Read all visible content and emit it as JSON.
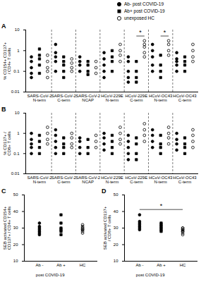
{
  "chart_data": [
    {
      "type": "scatter",
      "title": "A",
      "legend": "top-right",
      "log": "y",
      "y_label": "% CD154+ CD137+ / CD4+ T cells",
      "categories": [
        "SARS-CoV-2 N-term",
        "SARS-CoV-2 C-term",
        "SARS-CoV-2 NCAP",
        "HCoV-229E N-term",
        "HCoV-229E C-term",
        "HCoV-OC43 N-term",
        "HCoV-OC43 C-term"
      ],
      "ylim": [
        0.01,
        10
      ],
      "yticks": [
        0.01,
        0.1,
        1,
        10
      ],
      "series": [
        {
          "name": "Ab- post COVID-19",
          "color": "#000000",
          "marker": "circle",
          "values": [
            [
              0.5,
              0.3,
              0.15,
              0.08,
              0.05
            ],
            [
              2,
              0.8,
              0.5,
              0.3,
              0.1
            ],
            [
              0.5,
              0.3,
              0.2,
              0.1
            ],
            [
              0.8,
              0.4,
              0.2,
              0.1,
              0.05
            ],
            [
              0.5,
              0.3,
              0.1,
              0.05,
              0.03
            ],
            [
              2,
              1,
              0.5,
              0.2,
              0.1
            ],
            [
              0.8,
              0.4,
              0.3,
              0.2,
              0.1
            ]
          ]
        },
        {
          "name": "Ab+ post COVID-19",
          "color": "#000000",
          "marker": "square",
          "values": [
            [
              1.2,
              0.6,
              0.4,
              0.2,
              0.08
            ],
            [
              0.5,
              0.3,
              0.2,
              0.1,
              0.05
            ],
            [
              0.3,
              0.2,
              0.1,
              0.07
            ],
            [
              1,
              0.5,
              0.3,
              0.1
            ],
            [
              0.3,
              0.1,
              0.05,
              0.03
            ],
            [
              0.6,
              0.2,
              0.1,
              0.05
            ],
            [
              0.5,
              0.3,
              0.2,
              0.1
            ]
          ]
        },
        {
          "name": "unexposed HC",
          "color": "#000000",
          "marker": "open_circle",
          "values": [
            [
              0.6,
              0.3,
              0.15,
              0.1,
              0.05
            ],
            [
              0.4,
              0.25,
              0.15,
              0.1
            ],
            [
              0.3,
              0.15,
              0.08
            ],
            [
              2,
              1,
              0.6,
              0.3
            ],
            [
              3,
              2,
              1.5,
              0.8,
              0.5
            ],
            [
              3,
              2,
              1,
              0.6
            ],
            [
              2,
              1,
              0.5,
              0.3
            ]
          ]
        }
      ],
      "significance": [
        {
          "category": "HCoV-229E C-term",
          "groups": [
            "Ab+ post COVID-19",
            "unexposed HC"
          ],
          "label": "*"
        },
        {
          "category": "HCoV-OC43 N-term",
          "groups": [
            "Ab+ post COVID-19",
            "unexposed HC"
          ],
          "label": "*"
        }
      ]
    },
    {
      "type": "scatter",
      "title": "B",
      "log": "y",
      "y_label": "% CD137+ / CD8+ T cells",
      "categories": [
        "SARS-CoV-2 N-term",
        "SARS-CoV-2 C-term",
        "SARS-CoV-2 NCAP",
        "HCoV-229E N-term",
        "HCoV-229E C-term",
        "HCoV-OC43 N-term",
        "HCoV-OC43 C-term"
      ],
      "ylim": [
        0.01,
        10
      ],
      "yticks": [
        0.01,
        0.1,
        1,
        10
      ],
      "series": [
        {
          "name": "Ab- post COVID-19",
          "color": "#000000",
          "marker": "circle",
          "values": [
            [
              1,
              0.5,
              0.3,
              0.2,
              0.1
            ],
            [
              1.5,
              0.8,
              0.4,
              0.2,
              0.1
            ],
            [
              0.6,
              0.4,
              0.2,
              0.1
            ],
            [
              1,
              0.6,
              0.3,
              0.15
            ],
            [
              0.8,
              0.4,
              0.2,
              0.1,
              0.05
            ],
            [
              1.5,
              0.8,
              0.4,
              0.2
            ],
            [
              1,
              0.5,
              0.3,
              0.15
            ]
          ]
        },
        {
          "name": "Ab+ post COVID-19",
          "color": "#000000",
          "marker": "square",
          "values": [
            [
              0.8,
              0.4,
              0.2,
              0.1
            ],
            [
              0.6,
              0.3,
              0.2,
              0.1
            ],
            [
              0.5,
              0.2,
              0.1
            ],
            [
              0.8,
              0.4,
              0.2,
              0.1
            ],
            [
              0.6,
              0.3,
              0.1,
              0.05
            ],
            [
              0.8,
              0.3,
              0.2,
              0.1
            ],
            [
              0.6,
              0.3,
              0.2,
              0.1
            ]
          ]
        },
        {
          "name": "unexposed HC",
          "color": "#000000",
          "marker": "open_circle",
          "values": [
            [
              2,
              1,
              0.5,
              0.3
            ],
            [
              1,
              0.6,
              0.3,
              0.2
            ],
            [
              0.8,
              0.4,
              0.2
            ],
            [
              2,
              1,
              0.5,
              0.3
            ],
            [
              3,
              1.5,
              0.8,
              0.4
            ],
            [
              2,
              1,
              0.6,
              0.3
            ],
            [
              1.5,
              0.8,
              0.4,
              0.2
            ]
          ]
        }
      ]
    },
    {
      "type": "scatter",
      "title": "C",
      "y_label": "SEB activated CD154+ CD137+ / CD4+ T cells",
      "categories": [
        "Ab -",
        "Ab +",
        "HC"
      ],
      "ylim": [
        10,
        50
      ],
      "yticks": [
        10,
        20,
        30,
        40,
        50
      ],
      "series": [
        {
          "name": "Ab- post COVID-19",
          "color": "#000000",
          "marker": "circle",
          "values": [
            [
              33,
              30,
              28,
              27,
              26,
              31,
              29
            ],
            null,
            null
          ]
        },
        {
          "name": "Ab+ post COVID-19",
          "color": "#000000",
          "marker": "square",
          "values": [
            null,
            [
              38,
              33,
              30,
              28,
              26,
              29
            ],
            null
          ]
        },
        {
          "name": "unexposed HC",
          "color": "#000000",
          "marker": "open_circle",
          "values": [
            null,
            null,
            [
              31,
              30,
              29,
              28,
              27,
              30,
              32,
              29
            ]
          ]
        }
      ],
      "annotations": [
        {
          "text": "post COVID-19",
          "categories": [
            "Ab -",
            "Ab +"
          ]
        }
      ]
    },
    {
      "type": "scatter",
      "title": "D",
      "y_label": "SEB activated CD137+ / CD8+ T cells",
      "categories": [
        "Ab -",
        "Ab +",
        "HC"
      ],
      "ylim": [
        10,
        50
      ],
      "yticks": [
        10,
        20,
        30,
        40,
        50
      ],
      "series": [
        {
          "name": "Ab- post COVID-19",
          "color": "#000000",
          "marker": "circle",
          "values": [
            [
              38,
              34,
              32,
              30,
              29,
              33,
              31
            ],
            null,
            null
          ]
        },
        {
          "name": "Ab+ post COVID-19",
          "color": "#000000",
          "marker": "square",
          "values": [
            null,
            [
              33,
              31,
              30,
              28,
              29,
              32
            ],
            null
          ]
        },
        {
          "name": "unexposed HC",
          "color": "#000000",
          "marker": "open_circle",
          "values": [
            null,
            null,
            [
              30,
              29,
              28,
              27,
              29,
              26,
              28,
              30
            ]
          ]
        }
      ],
      "annotations": [
        {
          "text": "post COVID-19",
          "categories": [
            "Ab -",
            "Ab +"
          ]
        }
      ],
      "significance": [
        {
          "groups": [
            "Ab- post COVID-19",
            "unexposed HC"
          ],
          "label": "*"
        }
      ]
    }
  ]
}
